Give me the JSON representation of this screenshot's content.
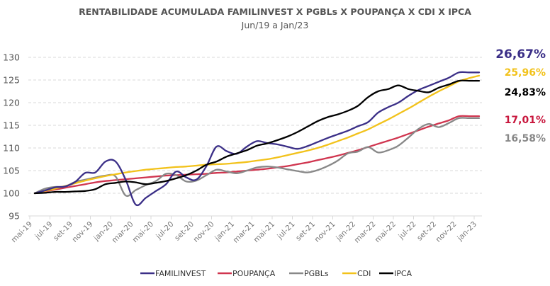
{
  "chart_data": {
    "type": "line",
    "title": "RENTABILIDADE ACUMULADA FAMILINVEST X PGBLs X POUPANÇA X CDI X IPCA",
    "subtitle": "Jun/19 a Jan/23",
    "xlabel": "",
    "ylabel": "",
    "ylim": [
      95,
      130
    ],
    "yticks": [
      95,
      100,
      105,
      110,
      115,
      120,
      125,
      130
    ],
    "grid": true,
    "legend_position": "bottom",
    "x": [
      "mai-19",
      "jun-19",
      "jul-19",
      "ago-19",
      "set-19",
      "out-19",
      "nov-19",
      "dez-19",
      "jan-20",
      "fev-20",
      "mar-20",
      "abr-20",
      "mai-20",
      "jun-20",
      "jul-20",
      "ago-20",
      "set-20",
      "out-20",
      "nov-20",
      "dez-20",
      "jan-21",
      "fev-21",
      "mar-21",
      "abr-21",
      "mai-21",
      "jun-21",
      "jul-21",
      "ago-21",
      "set-21",
      "out-21",
      "nov-21",
      "dez-21",
      "jan-22",
      "fev-22",
      "mar-22",
      "abr-22",
      "mai-22",
      "jun-22",
      "jul-22",
      "ago-22",
      "set-22",
      "out-22",
      "nov-22",
      "dez-22",
      "jan-23"
    ],
    "xtick_labels": [
      "mai-19",
      "jul-19",
      "set-19",
      "nov-19",
      "jan-20",
      "mar-20",
      "mai-20",
      "jul-20",
      "set-20",
      "nov-20",
      "jan-21",
      "mar-21",
      "mai-21",
      "jul-21",
      "set-21",
      "nov-21",
      "jan-22",
      "mar-22",
      "mai-22",
      "jul-22",
      "set-22",
      "nov-22",
      "jan-23"
    ],
    "series": [
      {
        "name": "FAMILINVEST",
        "color": "#3b2f87",
        "end_label": "26,67%",
        "values": [
          100,
          100.6,
          101.3,
          101.5,
          102.5,
          104.5,
          104.6,
          107.0,
          107.0,
          103.0,
          97.5,
          99.0,
          100.5,
          102.0,
          104.8,
          103.5,
          103.0,
          106.0,
          110.3,
          109.3,
          108.7,
          110.3,
          111.5,
          111.1,
          110.8,
          110.3,
          109.8,
          110.4,
          111.3,
          112.2,
          113.0,
          113.8,
          114.8,
          115.7,
          117.8,
          119.0,
          120.0,
          121.5,
          122.8,
          123.7,
          124.6,
          125.5,
          126.67,
          126.67,
          126.67
        ]
      },
      {
        "name": "POUPANÇA",
        "color": "#d0354f",
        "end_label": "17,01%",
        "values": [
          100,
          100.4,
          100.8,
          101.2,
          101.6,
          102.0,
          102.4,
          102.7,
          102.9,
          103.1,
          103.3,
          103.5,
          103.7,
          103.9,
          104.0,
          104.1,
          104.2,
          104.3,
          104.5,
          104.6,
          104.8,
          105.0,
          105.2,
          105.4,
          105.7,
          106.0,
          106.4,
          106.8,
          107.3,
          107.8,
          108.3,
          108.9,
          109.5,
          110.2,
          110.9,
          111.6,
          112.3,
          113.1,
          113.9,
          114.7,
          115.4,
          116.1,
          117.01,
          117.01,
          117.01
        ]
      },
      {
        "name": "PGBLs",
        "color": "#888888",
        "end_label": "16,58%",
        "values": [
          100,
          101.0,
          101.4,
          101.5,
          102.5,
          103.0,
          103.5,
          103.9,
          103.7,
          99.5,
          100.7,
          101.8,
          102.7,
          104.3,
          104.0,
          102.6,
          102.8,
          104.0,
          105.2,
          104.8,
          104.4,
          105.0,
          105.7,
          105.9,
          105.7,
          105.3,
          104.9,
          104.6,
          105.1,
          106.0,
          107.2,
          108.8,
          109.2,
          110.2,
          109.0,
          109.5,
          110.5,
          112.3,
          114.2,
          115.3,
          114.6,
          115.5,
          116.58,
          116.58,
          116.58
        ]
      },
      {
        "name": "CDI",
        "color": "#f2c21b",
        "end_label": "25,96%",
        "values": [
          100,
          100.5,
          101.0,
          101.6,
          102.2,
          102.8,
          103.3,
          103.8,
          104.2,
          104.6,
          104.9,
          105.2,
          105.4,
          105.6,
          105.8,
          105.9,
          106.1,
          106.3,
          106.4,
          106.5,
          106.7,
          106.9,
          107.2,
          107.5,
          107.9,
          108.4,
          108.9,
          109.4,
          110.0,
          110.7,
          111.5,
          112.3,
          113.2,
          114.1,
          115.2,
          116.3,
          117.5,
          118.7,
          120.0,
          121.3,
          122.5,
          123.6,
          124.7,
          125.4,
          125.96
        ]
      },
      {
        "name": "IPCA",
        "color": "#000000",
        "end_label": "24,83%",
        "values": [
          100,
          100.1,
          100.3,
          100.3,
          100.4,
          100.5,
          100.9,
          102.0,
          102.3,
          102.6,
          102.4,
          102.0,
          102.3,
          102.7,
          103.3,
          104.0,
          105.0,
          106.3,
          107.0,
          108.1,
          108.8,
          109.5,
          110.5,
          111.0,
          111.7,
          112.5,
          113.5,
          114.7,
          115.9,
          116.8,
          117.4,
          118.2,
          119.3,
          121.2,
          122.5,
          123.0,
          123.8,
          123.0,
          122.6,
          122.3,
          123.3,
          124.0,
          124.83,
          124.83,
          124.83
        ]
      }
    ]
  },
  "legend": {
    "items": [
      {
        "label": "FAMILINVEST",
        "color": "#3b2f87"
      },
      {
        "label": "POUPANÇA",
        "color": "#d0354f"
      },
      {
        "label": "PGBLs",
        "color": "#888888"
      },
      {
        "label": "CDI",
        "color": "#f2c21b"
      },
      {
        "label": "IPCA",
        "color": "#000000"
      }
    ]
  },
  "end_labels": [
    {
      "series": "FAMILINVEST",
      "text": "26,67%",
      "color": "#3b2f87"
    },
    {
      "series": "CDI",
      "text": "25,96%",
      "color": "#f2c21b"
    },
    {
      "series": "IPCA",
      "text": "24,83%",
      "color": "#000000"
    },
    {
      "series": "POUPANÇA",
      "text": "17,01%",
      "color": "#c8173d"
    },
    {
      "series": "PGBLs",
      "text": "16,58%",
      "color": "#888888"
    }
  ]
}
